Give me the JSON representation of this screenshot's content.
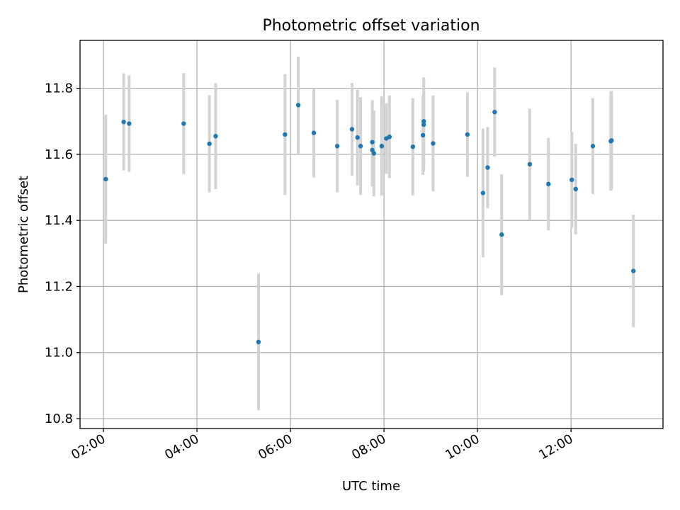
{
  "chart_data": {
    "type": "scatter",
    "title": "Photometric offset variation",
    "xlabel": "UTC time",
    "ylabel": "Photometric offset",
    "x_axis_format": "HH:MM",
    "xlim": [
      "01:30",
      "13:58"
    ],
    "ylim": [
      10.77,
      11.945
    ],
    "x_ticks": [
      "02:00",
      "04:00",
      "06:00",
      "08:00",
      "10:00",
      "12:00"
    ],
    "y_ticks": [
      "10.8",
      "11.0",
      "11.2",
      "11.4",
      "11.6",
      "11.8"
    ],
    "grid": true,
    "point_color": "#1f77b4",
    "errorbar_color": "#d3d3d3",
    "points": [
      {
        "x": "02:03",
        "y": 11.525,
        "err": 0.195
      },
      {
        "x": "02:26",
        "y": 11.698,
        "err": 0.147
      },
      {
        "x": "02:33",
        "y": 11.693,
        "err": 0.146
      },
      {
        "x": "03:43",
        "y": 11.693,
        "err": 0.153
      },
      {
        "x": "04:16",
        "y": 11.632,
        "err": 0.147
      },
      {
        "x": "04:24",
        "y": 11.655,
        "err": 0.16
      },
      {
        "x": "05:19",
        "y": 11.032,
        "err": 0.207
      },
      {
        "x": "05:53",
        "y": 11.66,
        "err": 0.183
      },
      {
        "x": "06:10",
        "y": 11.749,
        "err": 0.147
      },
      {
        "x": "06:30",
        "y": 11.665,
        "err": 0.135
      },
      {
        "x": "07:00",
        "y": 11.625,
        "err": 0.14
      },
      {
        "x": "07:19",
        "y": 11.676,
        "err": 0.14
      },
      {
        "x": "07:26",
        "y": 11.651,
        "err": 0.145
      },
      {
        "x": "07:30",
        "y": 11.625,
        "err": 0.148
      },
      {
        "x": "07:45",
        "y": 11.637,
        "err": 0.127
      },
      {
        "x": "07:45",
        "y": 11.613,
        "err": 0.11
      },
      {
        "x": "07:47",
        "y": 11.603,
        "err": 0.13
      },
      {
        "x": "07:57",
        "y": 11.625,
        "err": 0.15
      },
      {
        "x": "08:03",
        "y": 11.648,
        "err": 0.107
      },
      {
        "x": "08:07",
        "y": 11.653,
        "err": 0.125
      },
      {
        "x": "08:37",
        "y": 11.623,
        "err": 0.147
      },
      {
        "x": "08:50",
        "y": 11.658,
        "err": 0.12
      },
      {
        "x": "08:51",
        "y": 11.69,
        "err": 0.143
      },
      {
        "x": "08:51",
        "y": 11.7,
        "err": 0.13
      },
      {
        "x": "09:03",
        "y": 11.633,
        "err": 0.145
      },
      {
        "x": "09:47",
        "y": 11.66,
        "err": 0.128
      },
      {
        "x": "10:07",
        "y": 11.483,
        "err": 0.195
      },
      {
        "x": "10:13",
        "y": 11.56,
        "err": 0.123
      },
      {
        "x": "10:22",
        "y": 11.728,
        "err": 0.135
      },
      {
        "x": "10:31",
        "y": 11.357,
        "err": 0.183
      },
      {
        "x": "11:07",
        "y": 11.57,
        "err": 0.168
      },
      {
        "x": "11:31",
        "y": 11.51,
        "err": 0.14
      },
      {
        "x": "12:01",
        "y": 11.523,
        "err": 0.145
      },
      {
        "x": "12:06",
        "y": 11.495,
        "err": 0.137
      },
      {
        "x": "12:28",
        "y": 11.625,
        "err": 0.145
      },
      {
        "x": "12:51",
        "y": 11.64,
        "err": 0.15
      },
      {
        "x": "12:52",
        "y": 11.642,
        "err": 0.15
      },
      {
        "x": "13:20",
        "y": 11.247,
        "err": 0.17
      }
    ]
  }
}
